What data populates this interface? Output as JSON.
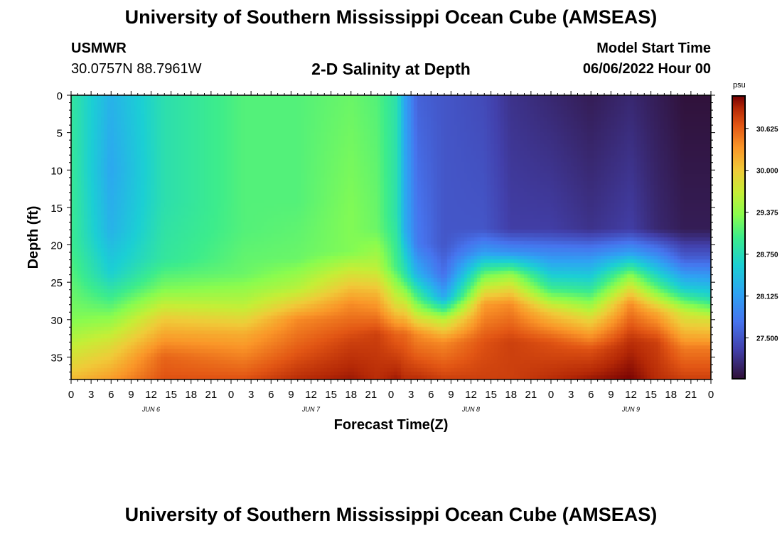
{
  "header": {
    "title": "University of Southern Mississippi Ocean Cube (AMSEAS)",
    "station": "USMWR",
    "coords": "30.0757N  88.7961W",
    "plot_title": "2-D Salinity at Depth",
    "model_start_label": "Model Start Time",
    "model_start_value": "06/06/2022 Hour 00"
  },
  "footer": {
    "title": "University of Southern Mississippi Ocean Cube (AMSEAS)"
  },
  "chart_data": {
    "type": "heatmap",
    "title": "2-D Salinity at Depth",
    "xlabel": "Forecast Time(Z)",
    "ylabel": "Depth (ft)",
    "x_tick_labels": [
      "0",
      "3",
      "6",
      "9",
      "12",
      "15",
      "18",
      "21",
      "0",
      "3",
      "6",
      "9",
      "12",
      "15",
      "18",
      "21",
      "0",
      "3",
      "6",
      "9",
      "12",
      "15",
      "18",
      "21",
      "0",
      "3",
      "6",
      "9",
      "12",
      "15",
      "18",
      "21",
      "0"
    ],
    "x_range_hours": [
      0,
      96
    ],
    "date_labels": [
      {
        "label": "JUN 6",
        "hour": 12
      },
      {
        "label": "JUN 7",
        "hour": 36
      },
      {
        "label": "JUN 8",
        "hour": 60
      },
      {
        "label": "JUN 9",
        "hour": 84
      }
    ],
    "y_ticks": [
      0,
      5,
      10,
      15,
      20,
      25,
      30,
      35
    ],
    "y_range": [
      0,
      38
    ],
    "y_inverted": true,
    "colorbar": {
      "unit": "psu",
      "ticks": [
        "30.625",
        "30.000",
        "29.375",
        "28.750",
        "28.125",
        "27.500"
      ],
      "range": [
        26.9,
        31.1
      ]
    },
    "salinity_profiles": [
      {
        "hour": 0,
        "values": [
          [
            0,
            28.9
          ],
          [
            20,
            29.0
          ],
          [
            30,
            29.3
          ],
          [
            35,
            29.8
          ],
          [
            38,
            30.1
          ]
        ]
      },
      {
        "hour": 6,
        "values": [
          [
            0,
            28.3
          ],
          [
            10,
            28.2
          ],
          [
            18,
            28.3
          ],
          [
            24,
            28.6
          ],
          [
            28,
            29.1
          ],
          [
            33,
            29.8
          ],
          [
            38,
            30.3
          ]
        ]
      },
      {
        "hour": 14,
        "values": [
          [
            0,
            28.8
          ],
          [
            14,
            28.8
          ],
          [
            22,
            28.9
          ],
          [
            26,
            29.3
          ],
          [
            30,
            30.0
          ],
          [
            35,
            30.6
          ],
          [
            38,
            30.7
          ]
        ]
      },
      {
        "hour": 26,
        "values": [
          [
            0,
            29.1
          ],
          [
            18,
            29.1
          ],
          [
            24,
            29.2
          ],
          [
            28,
            29.6
          ],
          [
            32,
            30.2
          ],
          [
            38,
            30.7
          ]
        ]
      },
      {
        "hour": 34,
        "values": [
          [
            0,
            29.1
          ],
          [
            14,
            29.1
          ],
          [
            22,
            29.2
          ],
          [
            26,
            29.6
          ],
          [
            30,
            30.4
          ],
          [
            38,
            30.9
          ]
        ]
      },
      {
        "hour": 42,
        "values": [
          [
            0,
            29.2
          ],
          [
            16,
            29.3
          ],
          [
            21,
            29.3
          ],
          [
            24,
            29.8
          ],
          [
            28,
            30.4
          ],
          [
            33,
            30.8
          ],
          [
            38,
            31.0
          ]
        ]
      },
      {
        "hour": 46,
        "values": [
          [
            0,
            29.1
          ],
          [
            18,
            29.2
          ],
          [
            23,
            29.6
          ],
          [
            27,
            30.2
          ],
          [
            32,
            30.8
          ],
          [
            38,
            30.9
          ]
        ]
      },
      {
        "hour": 49,
        "values": [
          [
            0,
            28.8
          ],
          [
            16,
            28.8
          ],
          [
            23,
            29.0
          ],
          [
            28,
            29.8
          ],
          [
            32,
            30.6
          ],
          [
            38,
            31.0
          ]
        ]
      },
      {
        "hour": 50,
        "values": [
          [
            0,
            28.2
          ],
          [
            18,
            28.3
          ],
          [
            24,
            28.9
          ],
          [
            28,
            29.8
          ],
          [
            32,
            30.6
          ],
          [
            38,
            30.9
          ]
        ]
      },
      {
        "hour": 52,
        "values": [
          [
            0,
            27.6
          ],
          [
            20,
            27.8
          ],
          [
            24,
            28.3
          ],
          [
            28,
            29.3
          ],
          [
            32,
            30.4
          ],
          [
            38,
            30.9
          ]
        ]
      },
      {
        "hour": 56,
        "values": [
          [
            0,
            27.5
          ],
          [
            20,
            27.5
          ],
          [
            24,
            27.7
          ],
          [
            27,
            28.2
          ],
          [
            30,
            29.6
          ],
          [
            33,
            30.4
          ],
          [
            38,
            30.8
          ]
        ]
      },
      {
        "hour": 62,
        "values": [
          [
            0,
            27.4
          ],
          [
            18,
            27.5
          ],
          [
            21,
            28.1
          ],
          [
            24,
            29.2
          ],
          [
            28,
            30.3
          ],
          [
            33,
            30.7
          ],
          [
            38,
            30.8
          ]
        ]
      },
      {
        "hour": 66,
        "values": [
          [
            0,
            27.2
          ],
          [
            18,
            27.3
          ],
          [
            21,
            28.0
          ],
          [
            24,
            29.4
          ],
          [
            28,
            30.4
          ],
          [
            33,
            30.8
          ],
          [
            38,
            30.8
          ]
        ]
      },
      {
        "hour": 72,
        "values": [
          [
            0,
            27.1
          ],
          [
            18,
            27.3
          ],
          [
            22,
            28.1
          ],
          [
            26,
            29.0
          ],
          [
            29,
            30.0
          ],
          [
            33,
            30.7
          ],
          [
            38,
            30.9
          ]
        ]
      },
      {
        "hour": 78,
        "values": [
          [
            0,
            27.0
          ],
          [
            18,
            27.2
          ],
          [
            22,
            28.1
          ],
          [
            26,
            28.9
          ],
          [
            30,
            29.9
          ],
          [
            34,
            30.7
          ],
          [
            38,
            31.0
          ]
        ]
      },
      {
        "hour": 84,
        "values": [
          [
            0,
            27.1
          ],
          [
            18,
            27.3
          ],
          [
            21,
            28.1
          ],
          [
            24,
            29.3
          ],
          [
            28,
            30.4
          ],
          [
            33,
            30.9
          ],
          [
            38,
            31.1
          ]
        ]
      },
      {
        "hour": 88,
        "values": [
          [
            0,
            27.0
          ],
          [
            18,
            27.1
          ],
          [
            22,
            28.1
          ],
          [
            26,
            29.2
          ],
          [
            29,
            30.2
          ],
          [
            33,
            30.8
          ],
          [
            38,
            30.9
          ]
        ]
      },
      {
        "hour": 92,
        "values": [
          [
            0,
            26.9
          ],
          [
            18,
            27.0
          ],
          [
            22,
            27.6
          ],
          [
            26,
            28.6
          ],
          [
            29,
            29.7
          ],
          [
            34,
            30.5
          ],
          [
            38,
            30.8
          ]
        ]
      },
      {
        "hour": 96,
        "values": [
          [
            0,
            26.9
          ],
          [
            18,
            27.0
          ],
          [
            22,
            27.6
          ],
          [
            27,
            28.7
          ],
          [
            30,
            29.8
          ],
          [
            34,
            30.5
          ],
          [
            38,
            30.8
          ]
        ]
      }
    ]
  }
}
